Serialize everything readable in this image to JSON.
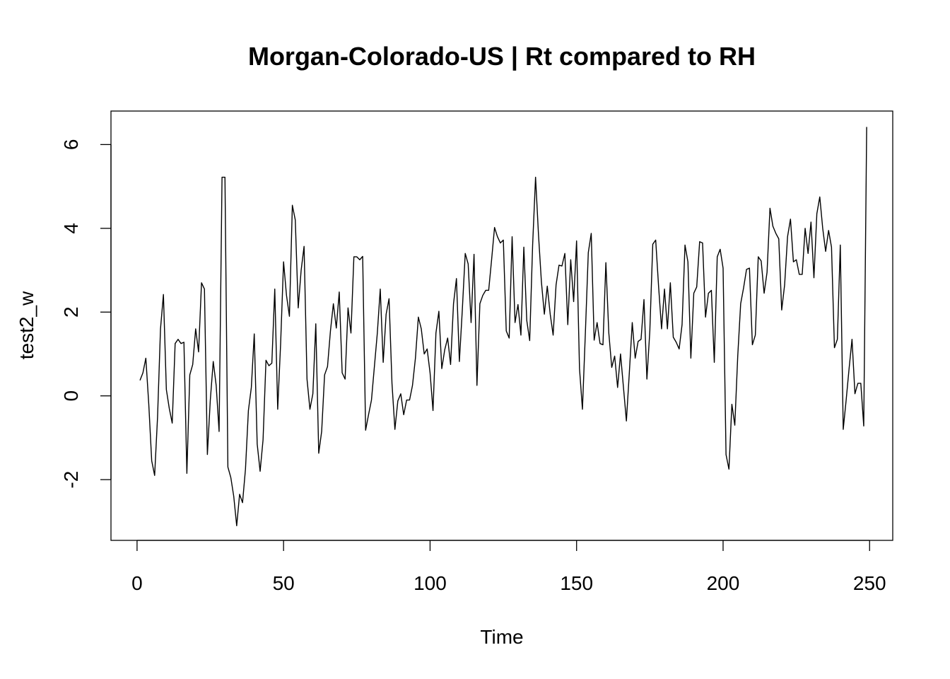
{
  "chart_data": {
    "type": "line",
    "title": "Morgan-Colorado-US | Rt compared to RH",
    "xlabel": "Time",
    "ylabel": "test2_w",
    "xlim": [
      -8.9,
      257.9
    ],
    "ylim": [
      -3.45,
      6.8
    ],
    "xticks": [
      0,
      50,
      100,
      150,
      200,
      250
    ],
    "xtick_labels": [
      "0",
      "50",
      "100",
      "150",
      "200",
      "250"
    ],
    "yticks": [
      -2,
      0,
      2,
      4,
      6
    ],
    "ytick_labels": [
      "-2",
      "0",
      "2",
      "4",
      "6"
    ],
    "grid": false,
    "legend": "none",
    "line_color": "#000000",
    "series": [
      {
        "x_start": 1,
        "values": [
          0.37,
          0.55,
          0.9,
          -0.2,
          -1.55,
          -1.9,
          -0.5,
          1.6,
          2.42,
          0.15,
          -0.3,
          -0.65,
          1.25,
          1.35,
          1.25,
          1.28,
          -1.85,
          0.5,
          0.75,
          1.6,
          1.05,
          2.7,
          2.55,
          -1.4,
          -0.1,
          0.82,
          0.25,
          -0.85,
          5.22,
          5.22,
          -1.7,
          -1.95,
          -2.4,
          -3.1,
          -2.35,
          -2.55,
          -1.75,
          -0.35,
          0.2,
          1.48,
          -1.15,
          -1.8,
          -1.05,
          0.85,
          0.72,
          0.78,
          2.55,
          -0.32,
          1.25,
          3.2,
          2.4,
          1.9,
          4.55,
          4.2,
          2.1,
          3.0,
          3.57,
          0.4,
          -0.32,
          0.05,
          1.72,
          -1.37,
          -0.85,
          0.5,
          0.7,
          1.55,
          2.2,
          1.62,
          2.48,
          0.55,
          0.4,
          2.1,
          1.5,
          3.32,
          3.32,
          3.25,
          3.33,
          -0.82,
          -0.45,
          -0.1,
          0.7,
          1.5,
          2.55,
          0.8,
          1.95,
          2.32,
          0.3,
          -0.8,
          -0.12,
          0.05,
          -0.45,
          -0.1,
          -0.1,
          0.25,
          0.9,
          1.88,
          1.6,
          1.0,
          1.12,
          0.55,
          -0.35,
          1.5,
          2.02,
          0.65,
          1.1,
          1.38,
          0.75,
          2.2,
          2.8,
          0.82,
          2.05,
          3.4,
          3.15,
          1.75,
          3.38,
          0.25,
          2.2,
          2.4,
          2.52,
          2.52,
          3.25,
          4.02,
          3.8,
          3.65,
          3.72,
          1.55,
          1.38,
          3.8,
          1.75,
          2.18,
          1.45,
          3.55,
          1.8,
          1.32,
          3.6,
          5.22,
          3.85,
          2.72,
          1.95,
          2.62,
          1.95,
          1.45,
          2.65,
          3.12,
          3.1,
          3.4,
          1.7,
          3.25,
          2.25,
          3.7,
          0.65,
          -0.32,
          1.5,
          3.42,
          3.88,
          1.33,
          1.75,
          1.25,
          1.22,
          3.18,
          1.5,
          0.68,
          0.95,
          0.2,
          1.0,
          0.2,
          -0.6,
          0.55,
          1.75,
          0.9,
          1.3,
          1.35,
          2.3,
          0.4,
          1.55,
          3.62,
          3.72,
          2.6,
          1.6,
          2.55,
          1.6,
          2.7,
          1.4,
          1.28,
          1.12,
          1.7,
          3.6,
          3.2,
          0.9,
          2.45,
          2.6,
          3.68,
          3.65,
          1.88,
          2.45,
          2.52,
          0.8,
          3.32,
          3.5,
          3.05,
          -1.4,
          -1.75,
          -0.2,
          -0.7,
          0.95,
          2.2,
          2.58,
          3.02,
          3.05,
          1.22,
          1.45,
          3.32,
          3.22,
          2.45,
          2.95,
          4.48,
          4.05,
          3.88,
          3.75,
          2.05,
          2.65,
          3.8,
          4.22,
          3.2,
          3.25,
          2.9,
          2.9,
          4.0,
          3.4,
          4.15,
          2.82,
          4.35,
          4.75,
          4.0,
          3.45,
          3.95,
          3.55,
          1.15,
          1.35,
          3.6,
          -0.8,
          -0.1,
          0.65,
          1.35,
          0.05,
          0.3,
          0.3,
          -0.72,
          6.42
        ]
      }
    ]
  }
}
